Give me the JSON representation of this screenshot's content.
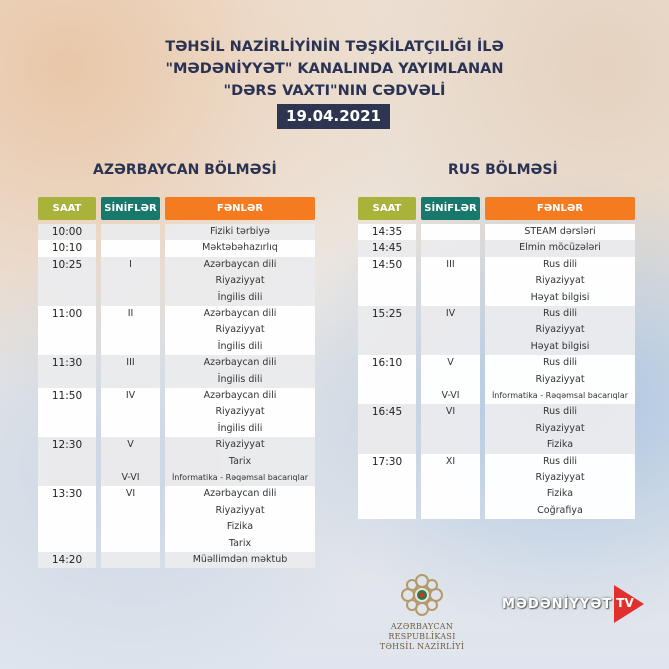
{
  "header": {
    "title_lines": [
      "TƏHSİL NAZİRLİYİNİN TƏŞKİLATÇILIĞI İLƏ",
      "\"MƏDƏNİYYƏT\" KANALINDA YAYIMLANAN",
      "\"DƏRS VAXTI\"NIN CƏDVƏLİ"
    ],
    "date": "19.04.2021"
  },
  "columns": {
    "time": "SAAT",
    "grades": "SİNİFLƏR",
    "subjects": "FƏNLƏR"
  },
  "colors": {
    "saat": "#a9b33a",
    "sinifler": "#17786b",
    "fenler": "#f47b20",
    "title": "#2b3355",
    "date_bg": "#2d3550"
  },
  "sections": [
    {
      "title": "AZƏRBAYCAN BÖLMƏSİ",
      "groups": [
        {
          "time": "10:00",
          "rows": [
            [
              "",
              "Fiziki tərbiyə"
            ]
          ]
        },
        {
          "time": "10:10",
          "rows": [
            [
              "",
              "Məktəbəhazırlıq"
            ]
          ]
        },
        {
          "time": "10:25",
          "rows": [
            [
              "I",
              "Azərbaycan dili"
            ],
            [
              "",
              "Riyaziyyat"
            ],
            [
              "",
              "İngilis dili"
            ]
          ]
        },
        {
          "time": "11:00",
          "rows": [
            [
              "II",
              "Azərbaycan dili"
            ],
            [
              "",
              "Riyaziyyat"
            ],
            [
              "",
              "İngilis dili"
            ]
          ]
        },
        {
          "time": "11:30",
          "rows": [
            [
              "III",
              "Azərbaycan dili"
            ],
            [
              "",
              "İngilis dili"
            ]
          ]
        },
        {
          "time": "11:50",
          "rows": [
            [
              "IV",
              "Azərbaycan dili"
            ],
            [
              "",
              "Riyaziyyat"
            ],
            [
              "",
              "İngilis dili"
            ]
          ]
        },
        {
          "time": "12:30",
          "rows": [
            [
              "V",
              "Riyaziyyat"
            ],
            [
              "",
              "Tarix"
            ],
            [
              "V-VI",
              "İnformatika - Rəqəmsal bacarıqlar"
            ]
          ]
        },
        {
          "time": "13:30",
          "rows": [
            [
              "VI",
              "Azərbaycan dili"
            ],
            [
              "",
              "Riyaziyyat"
            ],
            [
              "",
              "Fizika"
            ],
            [
              "",
              "Tarix"
            ]
          ]
        },
        {
          "time": "14:20",
          "rows": [
            [
              "",
              "Müəllimdən məktub"
            ]
          ]
        }
      ]
    },
    {
      "title": "RUS BÖLMƏSİ",
      "groups": [
        {
          "time": "14:35",
          "rows": [
            [
              "",
              "STEAM dərsləri"
            ]
          ]
        },
        {
          "time": "14:45",
          "rows": [
            [
              "",
              "Elmin möcüzələri"
            ]
          ]
        },
        {
          "time": "14:50",
          "rows": [
            [
              "III",
              "Rus dili"
            ],
            [
              "",
              "Riyaziyyat"
            ],
            [
              "",
              "Həyat bilgisi"
            ]
          ]
        },
        {
          "time": "15:25",
          "rows": [
            [
              "IV",
              "Rus dili"
            ],
            [
              "",
              "Riyaziyyat"
            ],
            [
              "",
              "Həyat bilgisi"
            ]
          ]
        },
        {
          "time": "16:10",
          "rows": [
            [
              "V",
              "Rus dili"
            ],
            [
              "",
              "Riyaziyyat"
            ],
            [
              "V-VI",
              "İnformatika - Rəqəmsal bacarıqlar"
            ]
          ]
        },
        {
          "time": "16:45",
          "rows": [
            [
              "VI",
              "Rus dili"
            ],
            [
              "",
              "Riyaziyyat"
            ],
            [
              "",
              "Fizika"
            ]
          ]
        },
        {
          "time": "17:30",
          "rows": [
            [
              "XI",
              "Rus dili"
            ],
            [
              "",
              "Riyaziyyat"
            ],
            [
              "",
              "Fizika"
            ],
            [
              "",
              "Coğrafiya"
            ]
          ]
        }
      ]
    }
  ],
  "footer": {
    "ministry_logo_text": [
      "AZƏRBAYCAN RESPUBLİKASI",
      "TƏHSİL NAZİRLİYİ"
    ],
    "tv_logo_word": "MƏDƏNİYYƏT",
    "tv_logo_badge": "TV"
  }
}
